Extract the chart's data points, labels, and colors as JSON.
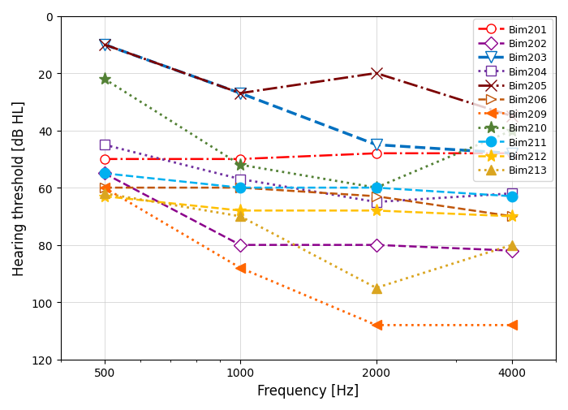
{
  "freqs": [
    500,
    1000,
    2000,
    4000
  ],
  "series": [
    {
      "name": "Bim201",
      "color": "#FF0000",
      "ls": "-.",
      "marker": "o",
      "mfc": "white",
      "mec": "#FF0000",
      "lw": 1.8,
      "ms": 8,
      "values": [
        50,
        50,
        48,
        48
      ]
    },
    {
      "name": "Bim202",
      "color": "#8B008B",
      "ls": "--",
      "marker": "D",
      "mfc": "white",
      "mec": "#8B008B",
      "lw": 1.8,
      "ms": 8,
      "values": [
        55,
        80,
        80,
        82
      ]
    },
    {
      "name": "Bim203",
      "color": "#0070C0",
      "ls": "--",
      "marker": "v",
      "mfc": "white",
      "mec": "#0070C0",
      "lw": 2.5,
      "ms": 10,
      "values": [
        10,
        27,
        45,
        48
      ]
    },
    {
      "name": "Bim204",
      "color": "#7030A0",
      "ls": ":",
      "marker": "s",
      "mfc": "white",
      "mec": "#7030A0",
      "lw": 2.0,
      "ms": 8,
      "values": [
        45,
        57,
        65,
        62
      ]
    },
    {
      "name": "Bim205",
      "color": "#7B0000",
      "ls": "-.",
      "marker": "x",
      "mfc": "#7B0000",
      "mec": "#7B0000",
      "lw": 2.0,
      "ms": 10,
      "values": [
        10,
        27,
        20,
        35
      ]
    },
    {
      "name": "Bim206",
      "color": "#C0560A",
      "ls": "--",
      "marker": ">",
      "mfc": "white",
      "mec": "#C0560A",
      "lw": 1.8,
      "ms": 8,
      "values": [
        60,
        60,
        63,
        70
      ]
    },
    {
      "name": "Bim209",
      "color": "#FF6600",
      "ls": ":",
      "marker": "<",
      "mfc": "#FF6600",
      "mec": "#FF6600",
      "lw": 2.0,
      "ms": 8,
      "values": [
        60,
        88,
        108,
        108
      ]
    },
    {
      "name": "Bim210",
      "color": "#538135",
      "ls": ":",
      "marker": "*",
      "mfc": "#538135",
      "mec": "#538135",
      "lw": 2.0,
      "ms": 11,
      "values": [
        22,
        52,
        60,
        40
      ]
    },
    {
      "name": "Bim211",
      "color": "#00B0F0",
      "ls": "--",
      "marker": "o",
      "mfc": "#00B0F0",
      "mec": "#00B0F0",
      "lw": 1.8,
      "ms": 9,
      "values": [
        55,
        60,
        60,
        63
      ]
    },
    {
      "name": "Bim212",
      "color": "#FFC000",
      "ls": "--",
      "marker": "*",
      "mfc": "#FFC000",
      "mec": "#FFC000",
      "lw": 1.8,
      "ms": 11,
      "values": [
        63,
        68,
        68,
        70
      ]
    },
    {
      "name": "Bim213",
      "color": "#DAA520",
      "ls": ":",
      "marker": "^",
      "mfc": "#DAA520",
      "mec": "#DAA520",
      "lw": 2.0,
      "ms": 8,
      "values": [
        62,
        70,
        95,
        80
      ]
    }
  ],
  "xlabel": "Frequency [Hz]",
  "ylabel": "Hearing threshold [dB HL]",
  "ymin": 0,
  "ymax": 120,
  "xticks": [
    500,
    1000,
    2000,
    4000
  ],
  "yticks": [
    0,
    20,
    40,
    60,
    80,
    100,
    120
  ],
  "figsize": [
    7.0,
    5.06
  ],
  "dpi": 100
}
